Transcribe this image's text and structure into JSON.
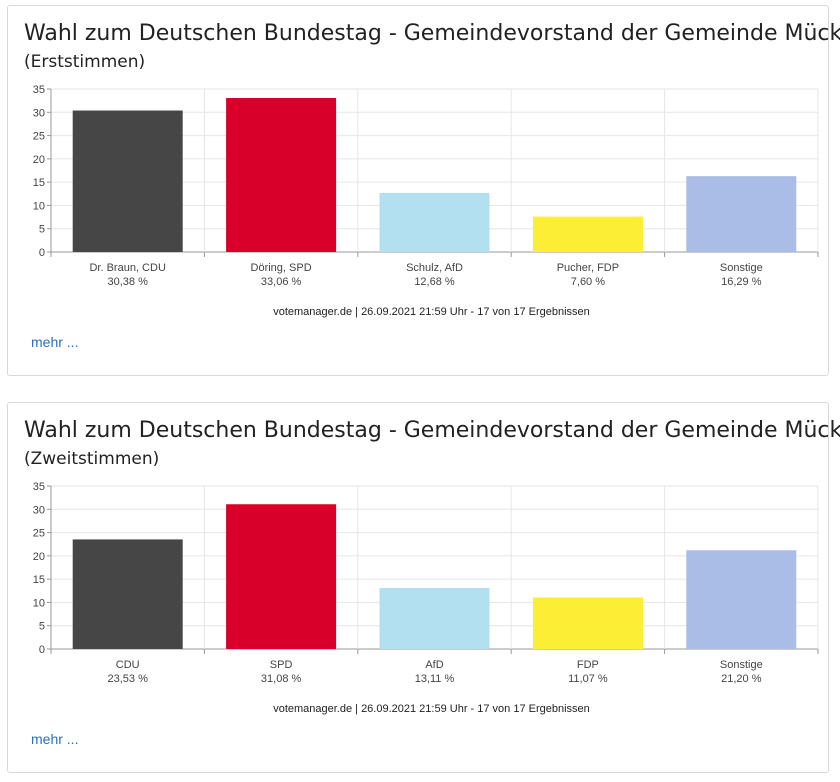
{
  "panels": [
    {
      "title": "Wahl zum Deutschen Bundestag - Gemeindevorstand der Gemeinde Mücke",
      "subtitle": "(Erststimmen)",
      "more_label": "mehr ...",
      "chart_data": {
        "type": "bar",
        "categories": [
          "Dr. Braun, CDU",
          "Döring, SPD",
          "Schulz, AfD",
          "Pucher, FDP",
          "Sonstige"
        ],
        "value_labels": [
          "30,38 %",
          "33,06 %",
          "12,68 %",
          "7,60 %",
          "16,29 %"
        ],
        "values": [
          30.38,
          33.06,
          12.68,
          7.6,
          16.29
        ],
        "colors": [
          "#464646",
          "#d8002a",
          "#b3e0f0",
          "#fbee35",
          "#aabde6"
        ],
        "ylim": [
          0,
          35
        ],
        "yticks": [
          0,
          5,
          10,
          15,
          20,
          25,
          30,
          35
        ],
        "grid": true,
        "source": "votemanager.de | 26.09.2021 21:59 Uhr - 17 von 17 Ergebnissen"
      }
    },
    {
      "title": "Wahl zum Deutschen Bundestag - Gemeindevorstand der Gemeinde Mücke",
      "subtitle": "(Zweitstimmen)",
      "more_label": "mehr ...",
      "chart_data": {
        "type": "bar",
        "categories": [
          "CDU",
          "SPD",
          "AfD",
          "FDP",
          "Sonstige"
        ],
        "value_labels": [
          "23,53 %",
          "31,08 %",
          "13,11 %",
          "11,07 %",
          "21,20 %"
        ],
        "values": [
          23.53,
          31.08,
          13.11,
          11.07,
          21.2
        ],
        "colors": [
          "#464646",
          "#d8002a",
          "#b3e0f0",
          "#fbee35",
          "#aabde6"
        ],
        "ylim": [
          0,
          35
        ],
        "yticks": [
          0,
          5,
          10,
          15,
          20,
          25,
          30,
          35
        ],
        "grid": true,
        "source": "votemanager.de | 26.09.2021 21:59 Uhr - 17 von 17 Ergebnissen"
      }
    }
  ]
}
